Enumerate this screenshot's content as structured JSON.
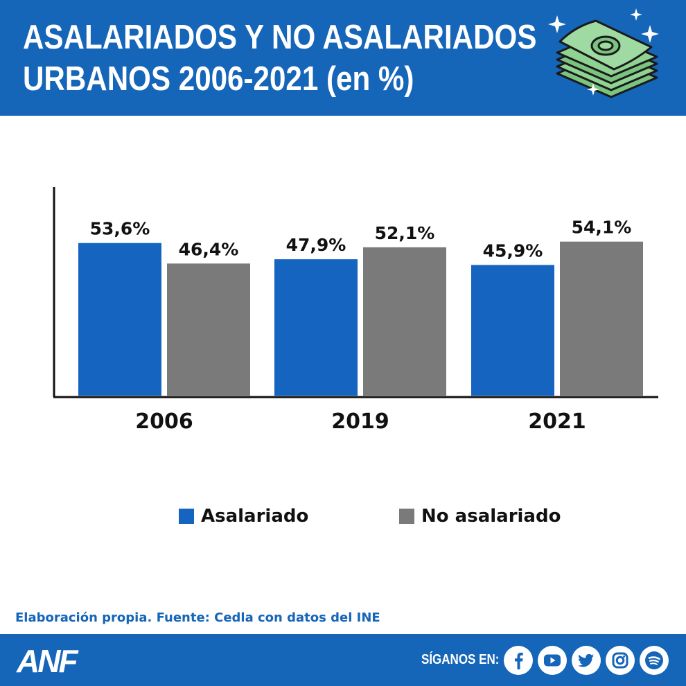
{
  "header": {
    "title_line1": "ASALARIADOS Y NO ASALARIADOS",
    "title_line2": "URBANOS 2006-2021 (en %)",
    "icon": "money-stack-icon"
  },
  "chart_data": {
    "type": "bar",
    "title": "ASALARIADOS Y NO ASALARIADOS URBANOS 2006-2021 (en %)",
    "categories": [
      "2006",
      "2019",
      "2021"
    ],
    "series": [
      {
        "name": "Asalariado",
        "values": [
          53.6,
          47.9,
          45.9
        ],
        "labels": [
          "53,6%",
          "47,9%",
          "45,9%"
        ],
        "color": "#1565c0"
      },
      {
        "name": "No asalariado",
        "values": [
          46.4,
          52.1,
          54.1
        ],
        "labels": [
          "46,4%",
          "52,1%",
          "54,1%"
        ],
        "color": "#7a7a7a"
      }
    ],
    "ylim": [
      0,
      73
    ],
    "grid": false,
    "legend_position": "bottom"
  },
  "legend": {
    "items": [
      {
        "label": "Asalariado",
        "color": "#1565c0"
      },
      {
        "label": "No asalariado",
        "color": "#7a7a7a"
      }
    ]
  },
  "source_text": "Elaboración propia. Fuente: Cedla con datos del INE",
  "footer": {
    "logo": "ANF",
    "follow_label": "SÍGANOS EN:",
    "social_icons": [
      "facebook-icon",
      "youtube-icon",
      "twitter-icon",
      "instagram-icon",
      "spotify-icon"
    ]
  },
  "colors": {
    "brand_blue": "#1565b8",
    "series_blue": "#1565c0",
    "series_gray": "#7a7a7a"
  }
}
